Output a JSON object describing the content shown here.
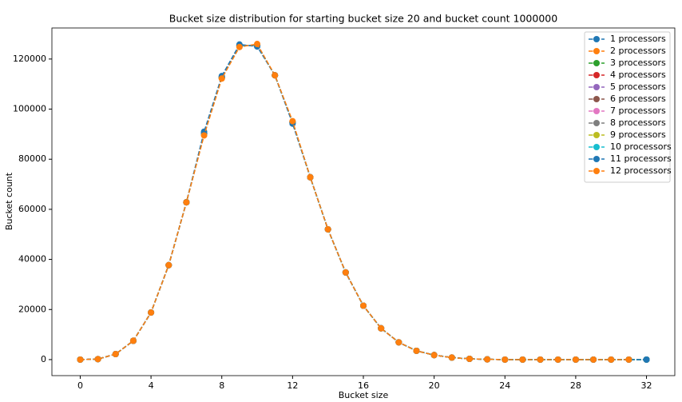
{
  "chart_data": {
    "type": "line",
    "title": "Bucket size distribution for starting bucket size 20 and bucket count 1000000",
    "xlabel": "Bucket size",
    "ylabel": "Bucket count",
    "x": [
      0,
      1,
      2,
      3,
      4,
      5,
      6,
      7,
      8,
      9,
      10,
      11,
      12,
      13,
      14,
      15,
      16,
      17,
      18,
      19,
      20,
      21,
      22,
      23,
      24,
      25,
      26,
      27,
      28,
      29,
      30,
      31,
      32
    ],
    "xlim": [
      -1.6,
      33.6
    ],
    "xticks": [
      0,
      4,
      8,
      12,
      16,
      20,
      24,
      28,
      32
    ],
    "ylim": [
      -6400,
      132400
    ],
    "yticks": [
      0,
      20000,
      40000,
      60000,
      80000,
      100000,
      120000
    ],
    "legend": "upper right",
    "line_style": "dashed",
    "marker": "circle",
    "series": [
      {
        "name": "1 processors",
        "color": "#1f77b4",
        "values": [
          0,
          200,
          2200,
          7500,
          18800,
          37700,
          62800,
          91000,
          113200,
          125800,
          125000,
          113500,
          94200,
          72800,
          52000,
          34800,
          21500,
          12500,
          6900,
          3500,
          1800,
          800,
          300,
          100,
          0,
          0,
          0,
          0,
          0,
          0,
          0,
          0,
          0
        ]
      },
      {
        "name": "2 processors",
        "color": "#ff7f0e",
        "values": [
          0,
          200,
          2200,
          7500,
          18800,
          37700,
          62800,
          90000,
          112500,
          125200,
          125500,
          113500,
          94800,
          72800,
          52000,
          34800,
          21500,
          12500,
          6900,
          3500,
          1800,
          800,
          300,
          100,
          0,
          0,
          0,
          0,
          0,
          0,
          0,
          0,
          0
        ]
      },
      {
        "name": "3 processors",
        "color": "#2ca02c",
        "values": [
          0,
          200,
          2200,
          7500,
          18800,
          37700,
          62800,
          90000,
          112500,
          125200,
          125500,
          113500,
          94800,
          72800,
          52000,
          34800,
          21500,
          12500,
          6900,
          3500,
          1800,
          800,
          300,
          100,
          0,
          0,
          0,
          0,
          0,
          0,
          0,
          0,
          0
        ]
      },
      {
        "name": "4 processors",
        "color": "#d62728",
        "values": [
          0,
          200,
          2200,
          7500,
          18800,
          37700,
          62800,
          90000,
          112500,
          125200,
          125500,
          113500,
          94800,
          72800,
          52000,
          34800,
          21500,
          12500,
          6900,
          3500,
          1800,
          800,
          300,
          100,
          0,
          0,
          0,
          0,
          0,
          0,
          0,
          0,
          0
        ]
      },
      {
        "name": "5 processors",
        "color": "#9467bd",
        "values": [
          0,
          200,
          2200,
          7500,
          18800,
          37700,
          62800,
          90000,
          112500,
          125200,
          125500,
          113500,
          94800,
          72800,
          52000,
          34800,
          21500,
          12500,
          6900,
          3500,
          1800,
          800,
          300,
          100,
          0,
          0,
          0,
          0,
          0,
          0,
          0,
          0,
          0
        ]
      },
      {
        "name": "6 processors",
        "color": "#8c564b",
        "values": [
          0,
          200,
          2200,
          7500,
          18800,
          37700,
          62800,
          90000,
          112500,
          125200,
          125500,
          113500,
          94800,
          72800,
          52000,
          34800,
          21500,
          12500,
          6900,
          3500,
          1800,
          800,
          300,
          100,
          0,
          0,
          0,
          0,
          0,
          0,
          0,
          0,
          0
        ]
      },
      {
        "name": "7 processors",
        "color": "#e377c2",
        "values": [
          0,
          200,
          2200,
          7500,
          18800,
          37700,
          62800,
          90000,
          112500,
          125200,
          125500,
          113500,
          94800,
          72800,
          52000,
          34800,
          21500,
          12500,
          6900,
          3500,
          1800,
          800,
          300,
          100,
          0,
          0,
          0,
          0,
          0,
          0,
          0,
          0,
          0
        ]
      },
      {
        "name": "8 processors",
        "color": "#7f7f7f",
        "values": [
          0,
          200,
          2200,
          7500,
          18800,
          37700,
          62800,
          90000,
          112500,
          125200,
          125500,
          113500,
          94800,
          72800,
          52000,
          34800,
          21500,
          12500,
          6900,
          3500,
          1800,
          800,
          300,
          100,
          0,
          0,
          0,
          0,
          0,
          0,
          0,
          0,
          0
        ]
      },
      {
        "name": "9 processors",
        "color": "#bcbd22",
        "values": [
          0,
          200,
          2200,
          7500,
          18800,
          37700,
          62800,
          90000,
          112500,
          125200,
          125500,
          113500,
          94800,
          72800,
          52000,
          34800,
          21500,
          12500,
          6900,
          3500,
          1800,
          800,
          300,
          100,
          0,
          0,
          0,
          0,
          0,
          0,
          0,
          0,
          0
        ]
      },
      {
        "name": "10 processors",
        "color": "#17becf",
        "values": [
          0,
          200,
          2200,
          7500,
          18800,
          37700,
          62800,
          90000,
          112500,
          125200,
          125500,
          113500,
          94800,
          72800,
          52000,
          34800,
          21500,
          12500,
          6900,
          3500,
          1800,
          800,
          300,
          100,
          0,
          0,
          0,
          0,
          0,
          0,
          0,
          0,
          0
        ]
      },
      {
        "name": "11 processors",
        "color": "#1f77b4",
        "values": [
          0,
          200,
          2200,
          7500,
          18800,
          37700,
          62800,
          90500,
          112800,
          125500,
          125300,
          113500,
          94500,
          72800,
          52000,
          34800,
          21500,
          12500,
          6900,
          3500,
          1800,
          800,
          300,
          100,
          0,
          0,
          0,
          0,
          0,
          0,
          0,
          0,
          0
        ]
      },
      {
        "name": "12 processors",
        "color": "#ff7f0e",
        "values": [
          0,
          200,
          2200,
          7500,
          18800,
          37700,
          62800,
          89500,
          112200,
          124800,
          126000,
          113500,
          95200,
          72800,
          52000,
          34800,
          21500,
          12500,
          6900,
          3500,
          1800,
          800,
          300,
          100,
          0,
          0,
          0,
          0,
          0,
          0,
          0,
          0,
          null
        ]
      }
    ]
  }
}
